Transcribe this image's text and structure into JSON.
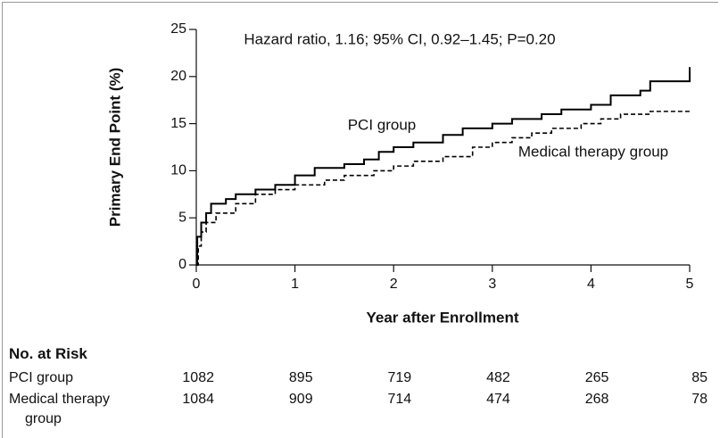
{
  "chart_data": {
    "type": "line",
    "annotations": [
      "Hazard ratio, 1.16; 95% CI, 0.92–1.45; P=0.20",
      "PCI group",
      "Medical therapy group"
    ],
    "xlabel": "Year after Enrollment",
    "ylabel": "Primary End Point (%)",
    "xlim": [
      0,
      5
    ],
    "xticks": [
      0,
      1,
      2,
      3,
      4,
      5
    ],
    "ylim": [
      0,
      25
    ],
    "yticks": [
      0,
      5,
      10,
      15,
      20,
      25
    ],
    "step": true,
    "series": [
      {
        "name": "PCI group",
        "color": "#000000",
        "dash": false,
        "x": [
          0,
          0.01,
          0.05,
          0.1,
          0.15,
          0.3,
          0.4,
          0.6,
          0.8,
          1.0,
          1.2,
          1.5,
          1.7,
          1.85,
          2.0,
          2.2,
          2.5,
          2.7,
          3.0,
          3.2,
          3.5,
          3.7,
          4.0,
          4.2,
          4.5,
          4.6,
          5.0
        ],
        "values": [
          0,
          3,
          4.5,
          5.5,
          6.5,
          7,
          7.5,
          8,
          8.5,
          9.5,
          10.3,
          10.7,
          11.2,
          12,
          12.5,
          13,
          13.8,
          14.5,
          15,
          15.5,
          16,
          16.5,
          17,
          18,
          18.5,
          19.5,
          21
        ]
      },
      {
        "name": "Medical therapy group",
        "color": "#000000",
        "dash": true,
        "x": [
          0,
          0.02,
          0.05,
          0.1,
          0.2,
          0.4,
          0.6,
          0.8,
          1.0,
          1.3,
          1.5,
          1.8,
          2.0,
          2.2,
          2.5,
          2.8,
          3.0,
          3.2,
          3.4,
          3.6,
          3.9,
          4.1,
          4.3,
          4.6,
          5.0
        ],
        "values": [
          0,
          2,
          3.5,
          4.5,
          5.5,
          6.5,
          7.5,
          8,
          8.5,
          9,
          9.5,
          10,
          10.5,
          11,
          11.5,
          12.5,
          13,
          13.5,
          14,
          14.5,
          15,
          15.5,
          16,
          16.3,
          16.3
        ]
      }
    ],
    "risk_table": {
      "title": "No. at Risk",
      "rows": [
        {
          "name": "PCI group",
          "values": [
            1082,
            895,
            719,
            482,
            265,
            85
          ]
        },
        {
          "name": "Medical therapy group",
          "values": [
            1084,
            909,
            714,
            474,
            268,
            78
          ]
        }
      ]
    }
  }
}
